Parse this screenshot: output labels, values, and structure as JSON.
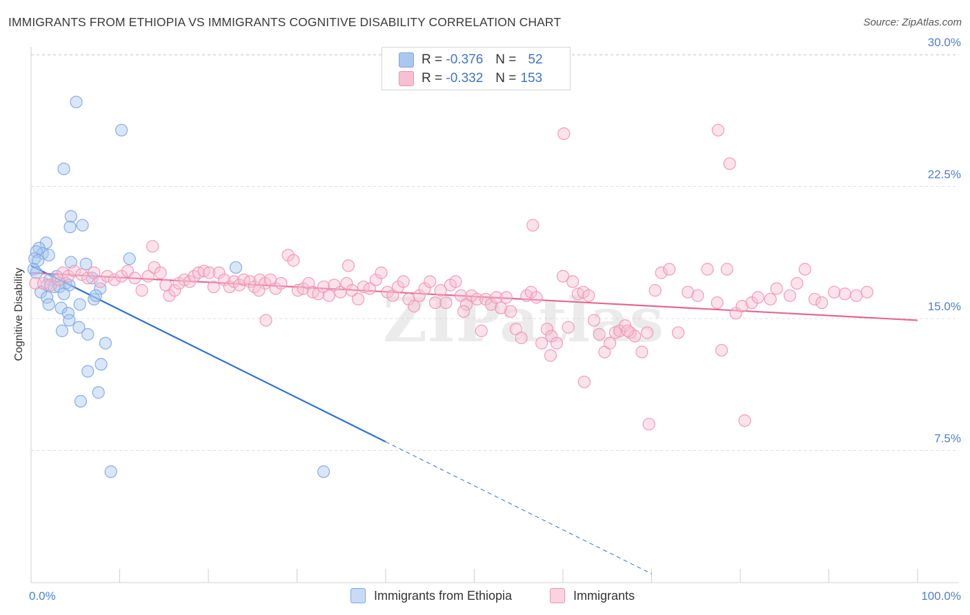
{
  "title": "IMMIGRANTS FROM ETHIOPIA VS IMMIGRANTS COGNITIVE DISABILITY CORRELATION CHART",
  "source": "Source: ZipAtlas.com",
  "watermark": "ZIPatlas",
  "legend": {
    "rows": [
      {
        "r_label": "R =",
        "r_value": "-0.376",
        "n_label": "N =",
        "n_value": "52",
        "color": "#a8c8f0",
        "border": "#7aa6e0"
      },
      {
        "r_label": "R =",
        "r_value": "-0.332",
        "n_label": "N =",
        "n_value": "153",
        "color": "#f8bfd2",
        "border": "#ec93b3"
      }
    ]
  },
  "bottom_legend": [
    {
      "label": "Immigrants from Ethiopia",
      "color": "#c6dcf6",
      "border": "#7aa6e0"
    },
    {
      "label": "Immigrants",
      "color": "#fbd3e0",
      "border": "#ec93b3"
    }
  ],
  "chart_data": {
    "type": "scatter",
    "ylabel": "Cognitive Disability",
    "xlim": [
      0,
      100
    ],
    "ylim": [
      0,
      30
    ],
    "y_ticks": [
      {
        "value": 7.5,
        "label": "7.5%"
      },
      {
        "value": 15.0,
        "label": "15.0%"
      },
      {
        "value": 22.5,
        "label": "22.5%"
      },
      {
        "value": 30.0,
        "label": "30.0%"
      }
    ],
    "x_tick_labels": {
      "min": "0.0%",
      "max": "100.0%"
    },
    "grid": "horizontal dashed",
    "series": [
      {
        "name": "Immigrants from Ethiopia",
        "color": "#7aa6e0",
        "fill": "#a8c8f0",
        "trend": {
          "x0": 0,
          "y0": 18.0,
          "x1": 40,
          "y1": 8.0,
          "dashed_to_x": 70,
          "dashed_to_y": 0.5,
          "color": "#2e6fd4"
        },
        "points": [
          [
            5.1,
            27.3
          ],
          [
            10.2,
            25.7
          ],
          [
            3.7,
            23.5
          ],
          [
            4.5,
            20.8
          ],
          [
            5.8,
            20.3
          ],
          [
            4.4,
            20.2
          ],
          [
            1.7,
            19.3
          ],
          [
            0.9,
            19.0
          ],
          [
            1.3,
            18.7
          ],
          [
            2.0,
            18.6
          ],
          [
            0.6,
            18.8
          ],
          [
            0.4,
            18.4
          ],
          [
            0.8,
            18.3
          ],
          [
            4.5,
            18.2
          ],
          [
            6.2,
            18.1
          ],
          [
            11.1,
            18.4
          ],
          [
            23.1,
            17.9
          ],
          [
            0.3,
            17.8
          ],
          [
            0.6,
            17.6
          ],
          [
            2.9,
            17.4
          ],
          [
            6.9,
            17.3
          ],
          [
            2.1,
            17.2
          ],
          [
            3.9,
            17.0
          ],
          [
            1.8,
            16.9
          ],
          [
            2.6,
            16.8
          ],
          [
            3.2,
            16.8
          ],
          [
            4.3,
            16.9
          ],
          [
            7.8,
            16.7
          ],
          [
            1.1,
            16.5
          ],
          [
            3.7,
            16.4
          ],
          [
            1.8,
            16.2
          ],
          [
            7.1,
            16.1
          ],
          [
            7.3,
            16.3
          ],
          [
            2.0,
            15.8
          ],
          [
            3.4,
            15.6
          ],
          [
            5.5,
            15.8
          ],
          [
            4.2,
            15.3
          ],
          [
            4.3,
            14.9
          ],
          [
            5.4,
            14.5
          ],
          [
            3.5,
            14.3
          ],
          [
            6.4,
            14.1
          ],
          [
            8.4,
            13.6
          ],
          [
            7.9,
            12.4
          ],
          [
            6.4,
            12.0
          ],
          [
            7.6,
            10.8
          ],
          [
            5.6,
            10.3
          ],
          [
            9.0,
            6.3
          ],
          [
            33.0,
            6.3
          ]
        ]
      },
      {
        "name": "Immigrants",
        "color": "#ec93b3",
        "fill": "#f8bfd2",
        "trend": {
          "x0": 0,
          "y0": 17.6,
          "x1": 100,
          "y1": 14.9,
          "color": "#e5668f"
        },
        "points": [
          [
            0.5,
            17.0
          ],
          [
            1.4,
            17.0
          ],
          [
            2.2,
            16.9
          ],
          [
            3.1,
            17.2
          ],
          [
            3.6,
            17.6
          ],
          [
            4.2,
            17.4
          ],
          [
            4.9,
            17.7
          ],
          [
            5.7,
            17.5
          ],
          [
            6.4,
            17.3
          ],
          [
            7.1,
            17.6
          ],
          [
            7.8,
            17.1
          ],
          [
            8.6,
            17.4
          ],
          [
            9.4,
            17.2
          ],
          [
            10.2,
            17.4
          ],
          [
            10.9,
            17.7
          ],
          [
            11.7,
            17.3
          ],
          [
            12.5,
            16.6
          ],
          [
            13.2,
            17.4
          ],
          [
            13.9,
            17.9
          ],
          [
            14.6,
            17.6
          ],
          [
            15.2,
            16.9
          ],
          [
            15.6,
            16.3
          ],
          [
            16.2,
            16.6
          ],
          [
            16.7,
            17.0
          ],
          [
            17.3,
            17.2
          ],
          [
            17.9,
            17.1
          ],
          [
            18.4,
            17.4
          ],
          [
            18.9,
            17.6
          ],
          [
            19.5,
            17.7
          ],
          [
            20.1,
            17.6
          ],
          [
            20.6,
            16.8
          ],
          [
            21.2,
            17.6
          ],
          [
            21.8,
            17.2
          ],
          [
            22.4,
            16.8
          ],
          [
            22.9,
            17.1
          ],
          [
            23.5,
            16.9
          ],
          [
            24.0,
            17.2
          ],
          [
            24.7,
            17.1
          ],
          [
            25.2,
            16.8
          ],
          [
            25.8,
            17.2
          ],
          [
            26.4,
            17.0
          ],
          [
            27.0,
            17.2
          ],
          [
            27.6,
            16.7
          ],
          [
            28.2,
            17.0
          ],
          [
            29.0,
            18.6
          ],
          [
            29.6,
            18.3
          ],
          [
            30.1,
            16.6
          ],
          [
            30.7,
            16.7
          ],
          [
            31.3,
            17.0
          ],
          [
            31.8,
            16.5
          ],
          [
            32.4,
            16.4
          ],
          [
            33.0,
            16.8
          ],
          [
            33.6,
            16.3
          ],
          [
            34.2,
            16.9
          ],
          [
            34.9,
            16.5
          ],
          [
            35.6,
            17.0
          ],
          [
            36.2,
            16.6
          ],
          [
            36.9,
            16.1
          ],
          [
            37.5,
            16.8
          ],
          [
            38.2,
            16.7
          ],
          [
            38.9,
            17.2
          ],
          [
            39.5,
            17.6
          ],
          [
            40.2,
            16.5
          ],
          [
            40.8,
            16.3
          ],
          [
            41.4,
            16.8
          ],
          [
            42.0,
            17.1
          ],
          [
            42.6,
            16.1
          ],
          [
            43.2,
            15.7
          ],
          [
            43.8,
            16.3
          ],
          [
            44.4,
            16.7
          ],
          [
            45.0,
            17.1
          ],
          [
            45.6,
            15.9
          ],
          [
            46.2,
            16.6
          ],
          [
            46.8,
            15.9
          ],
          [
            47.3,
            16.9
          ],
          [
            47.9,
            17.1
          ],
          [
            48.5,
            16.3
          ],
          [
            49.1,
            15.8
          ],
          [
            49.7,
            16.3
          ],
          [
            50.3,
            16.1
          ],
          [
            50.8,
            14.3
          ],
          [
            51.3,
            16.1
          ],
          [
            51.9,
            15.8
          ],
          [
            52.5,
            16.2
          ],
          [
            53.0,
            15.6
          ],
          [
            53.6,
            16.2
          ],
          [
            54.1,
            15.4
          ],
          [
            54.7,
            14.4
          ],
          [
            55.3,
            13.9
          ],
          [
            55.9,
            16.3
          ],
          [
            56.4,
            16.5
          ],
          [
            57.0,
            16.2
          ],
          [
            57.6,
            13.6
          ],
          [
            58.2,
            14.4
          ],
          [
            58.7,
            14.0
          ],
          [
            59.3,
            13.6
          ],
          [
            60.0,
            17.4
          ],
          [
            60.6,
            14.5
          ],
          [
            61.1,
            17.1
          ],
          [
            61.7,
            16.4
          ],
          [
            62.3,
            16.5
          ],
          [
            62.9,
            16.3
          ],
          [
            63.5,
            14.9
          ],
          [
            64.1,
            14.1
          ],
          [
            64.7,
            13.1
          ],
          [
            65.3,
            13.6
          ],
          [
            65.9,
            14.2
          ],
          [
            66.4,
            14.3
          ],
          [
            67.0,
            14.6
          ],
          [
            67.6,
            14.2
          ],
          [
            68.1,
            14.0
          ],
          [
            68.9,
            13.1
          ],
          [
            69.5,
            14.2
          ],
          [
            70.4,
            16.6
          ],
          [
            71.1,
            17.6
          ],
          [
            72.0,
            17.8
          ],
          [
            73.0,
            14.2
          ],
          [
            74.1,
            16.5
          ],
          [
            75.2,
            16.3
          ],
          [
            76.3,
            17.8
          ],
          [
            77.4,
            15.9
          ],
          [
            78.5,
            17.8
          ],
          [
            79.5,
            15.3
          ],
          [
            80.2,
            15.7
          ],
          [
            81.3,
            15.9
          ],
          [
            82.0,
            16.2
          ],
          [
            83.4,
            16.1
          ],
          [
            84.1,
            16.7
          ],
          [
            85.6,
            16.3
          ],
          [
            86.4,
            17.0
          ],
          [
            87.3,
            17.8
          ],
          [
            88.4,
            16.1
          ],
          [
            89.2,
            15.9
          ],
          [
            90.6,
            16.5
          ],
          [
            91.8,
            16.4
          ],
          [
            93.1,
            16.3
          ],
          [
            94.3,
            16.5
          ],
          [
            58.6,
            12.9
          ],
          [
            62.4,
            11.4
          ],
          [
            69.7,
            9.0
          ],
          [
            80.5,
            9.2
          ],
          [
            56.6,
            20.3
          ],
          [
            48.8,
            15.4
          ],
          [
            13.7,
            19.1
          ],
          [
            25.7,
            16.6
          ],
          [
            35.8,
            18.0
          ],
          [
            26.5,
            14.9
          ],
          [
            67.3,
            14.3
          ],
          [
            77.9,
            13.2
          ],
          [
            60.1,
            25.5
          ],
          [
            77.5,
            25.7
          ],
          [
            78.8,
            23.8
          ]
        ]
      }
    ]
  }
}
